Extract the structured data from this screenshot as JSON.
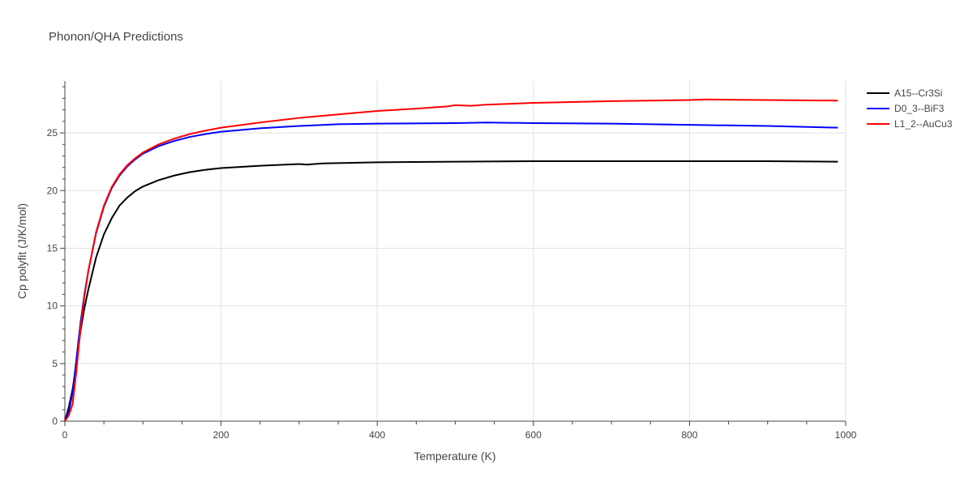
{
  "chart_data": {
    "type": "line",
    "title": "Phonon/QHA Predictions",
    "xlabel": "Temperature (K)",
    "ylabel": "Cp polyfit (J/K/mol)",
    "xlim": [
      0,
      1000
    ],
    "ylim": [
      0,
      29.5
    ],
    "xticks": [
      0,
      200,
      400,
      600,
      800,
      1000
    ],
    "yticks": [
      0,
      5,
      10,
      15,
      20,
      25
    ],
    "grid": true,
    "legend_position": "top-right",
    "series": [
      {
        "name": "A15--Cr3Si",
        "color": "#000000",
        "x": [
          0,
          5,
          10,
          15,
          20,
          25,
          30,
          40,
          50,
          60,
          70,
          80,
          90,
          100,
          120,
          140,
          160,
          180,
          200,
          250,
          300,
          310,
          330,
          400,
          500,
          600,
          700,
          800,
          850,
          900,
          990
        ],
        "y": [
          0,
          1.2,
          2.8,
          5.2,
          7.8,
          9.8,
          11.4,
          14.2,
          16.2,
          17.6,
          18.7,
          19.4,
          19.95,
          20.35,
          20.9,
          21.3,
          21.6,
          21.8,
          21.95,
          22.15,
          22.3,
          22.25,
          22.35,
          22.45,
          22.5,
          22.55,
          22.55,
          22.55,
          22.55,
          22.55,
          22.5
        ]
      },
      {
        "name": "D0_3--BiF3",
        "color": "#0000ff",
        "x": [
          0,
          5,
          10,
          15,
          20,
          25,
          30,
          40,
          50,
          60,
          70,
          80,
          90,
          100,
          120,
          140,
          160,
          180,
          200,
          250,
          300,
          350,
          400,
          500,
          540,
          600,
          700,
          800,
          900,
          990
        ],
        "y": [
          0,
          0.8,
          2.5,
          5.5,
          8.5,
          11.0,
          13.0,
          16.3,
          18.6,
          20.2,
          21.3,
          22.1,
          22.7,
          23.2,
          23.85,
          24.3,
          24.65,
          24.9,
          25.1,
          25.4,
          25.6,
          25.75,
          25.8,
          25.85,
          25.9,
          25.85,
          25.8,
          25.7,
          25.6,
          25.45
        ]
      },
      {
        "name": "L1_2--AuCu3",
        "color": "#ff0000",
        "x": [
          0,
          5,
          10,
          15,
          20,
          25,
          30,
          40,
          50,
          60,
          70,
          80,
          90,
          100,
          120,
          140,
          160,
          180,
          200,
          250,
          300,
          350,
          400,
          450,
          490,
          500,
          520,
          540,
          560,
          600,
          700,
          800,
          820,
          900,
          990
        ],
        "y": [
          0,
          0.5,
          1.5,
          4.5,
          8.0,
          10.8,
          13.0,
          16.4,
          18.7,
          20.3,
          21.4,
          22.2,
          22.8,
          23.3,
          24.0,
          24.5,
          24.9,
          25.2,
          25.45,
          25.9,
          26.3,
          26.6,
          26.9,
          27.1,
          27.3,
          27.4,
          27.35,
          27.45,
          27.5,
          27.6,
          27.75,
          27.85,
          27.9,
          27.85,
          27.8
        ]
      }
    ]
  }
}
